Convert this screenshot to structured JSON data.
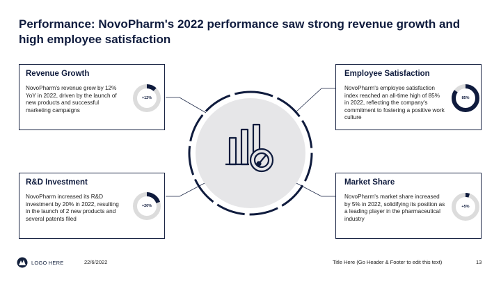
{
  "slide": {
    "title": "Performance: NovoPharm's 2022 performance saw strong revenue growth and high employee satisfaction"
  },
  "cards": {
    "revenue": {
      "title": "Revenue Growth",
      "text": "NovoPharm's revenue grew by 12% YoY in 2022, driven by the launch of new products and successful marketing campaigns",
      "donut_label": "+12%",
      "donut_value": 0.12
    },
    "employee": {
      "title": "Employee Satisfaction",
      "text": "NovoPharm's employee satisfaction index reached an all-time high of 85% in 2022, reflecting the company's commitment to fostering a positive work culture",
      "donut_label": "85%",
      "donut_value": 0.85
    },
    "rnd": {
      "title": "R&D Investment",
      "text": "NovoPharm increased its R&D investment by 20% in 2022, resulting in the launch of 2 new products and several patents filed",
      "donut_label": "+20%",
      "donut_value": 0.2
    },
    "market": {
      "title": "Market Share",
      "text": "NovoPharm's market share increased by 5% in 2022, solidifying its position as a leading player in the pharmaceutical industry",
      "donut_label": "+5%",
      "donut_value": 0.05
    }
  },
  "colors": {
    "accent": "#0f1b3d",
    "track": "#dcdcdc",
    "circle_fill": "#e6e6e8"
  },
  "footer": {
    "logo_text": "LOGO HERE",
    "date": "22/6/2022",
    "title": "Title Here (Go Header & Footer to edit this text)",
    "page": "13"
  }
}
